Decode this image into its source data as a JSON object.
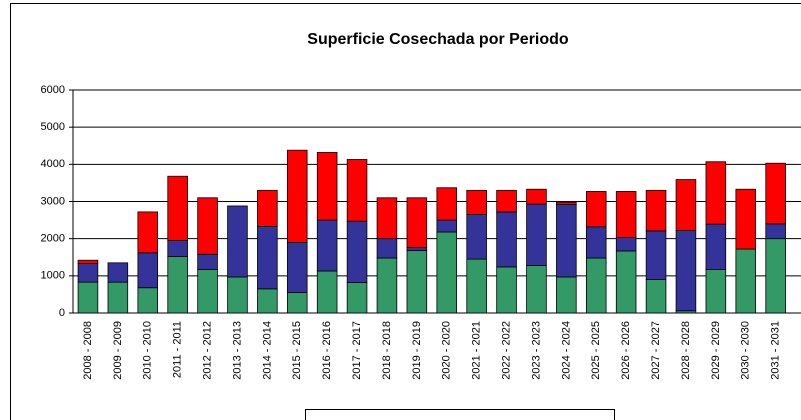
{
  "chart_data": {
    "type": "stacked_bar",
    "title": "Superficie Cosechada por Periodo",
    "categories": [
      "2008 - 2008",
      "2009 - 2009",
      "2010 - 2010",
      "2011 - 2011",
      "2012 - 2012",
      "2013 - 2013",
      "2014 - 2014",
      "2015 - 2015",
      "2016 - 2016",
      "2017 - 2017",
      "2018 - 2018",
      "2019 - 2019",
      "2020 - 2020",
      "2021 - 2021",
      "2022 - 2022",
      "2023 - 2023",
      "2024 - 2024",
      "2025 - 2025",
      "2026 - 2026",
      "2027 - 2027",
      "2028 - 2028",
      "2029 - 2029",
      "2030 - 2030",
      "2031 - 2031"
    ],
    "series": [
      {
        "color": "#339966",
        "values": [
          830,
          830,
          680,
          1520,
          1170,
          970,
          650,
          550,
          1130,
          820,
          1480,
          1680,
          2180,
          1450,
          1240,
          1280,
          970,
          1480,
          1670,
          900,
          60,
          1170,
          1720,
          2000
        ]
      },
      {
        "color": "#333399",
        "values": [
          500,
          520,
          940,
          430,
          410,
          1910,
          1680,
          1350,
          1370,
          1650,
          520,
          80,
          320,
          1200,
          1480,
          1650,
          1950,
          840,
          360,
          1310,
          2160,
          1220,
          0,
          400
        ]
      },
      {
        "color": "#ff0000",
        "values": [
          90,
          0,
          1100,
          1730,
          1520,
          0,
          970,
          2480,
          1820,
          1660,
          1100,
          1340,
          870,
          650,
          580,
          400,
          60,
          950,
          1240,
          1090,
          1370,
          1680,
          1610,
          1630
        ]
      }
    ],
    "ylim": [
      0,
      6000
    ],
    "yticks": [
      0,
      1000,
      2000,
      3000,
      4000,
      5000,
      6000
    ],
    "grid": true
  }
}
